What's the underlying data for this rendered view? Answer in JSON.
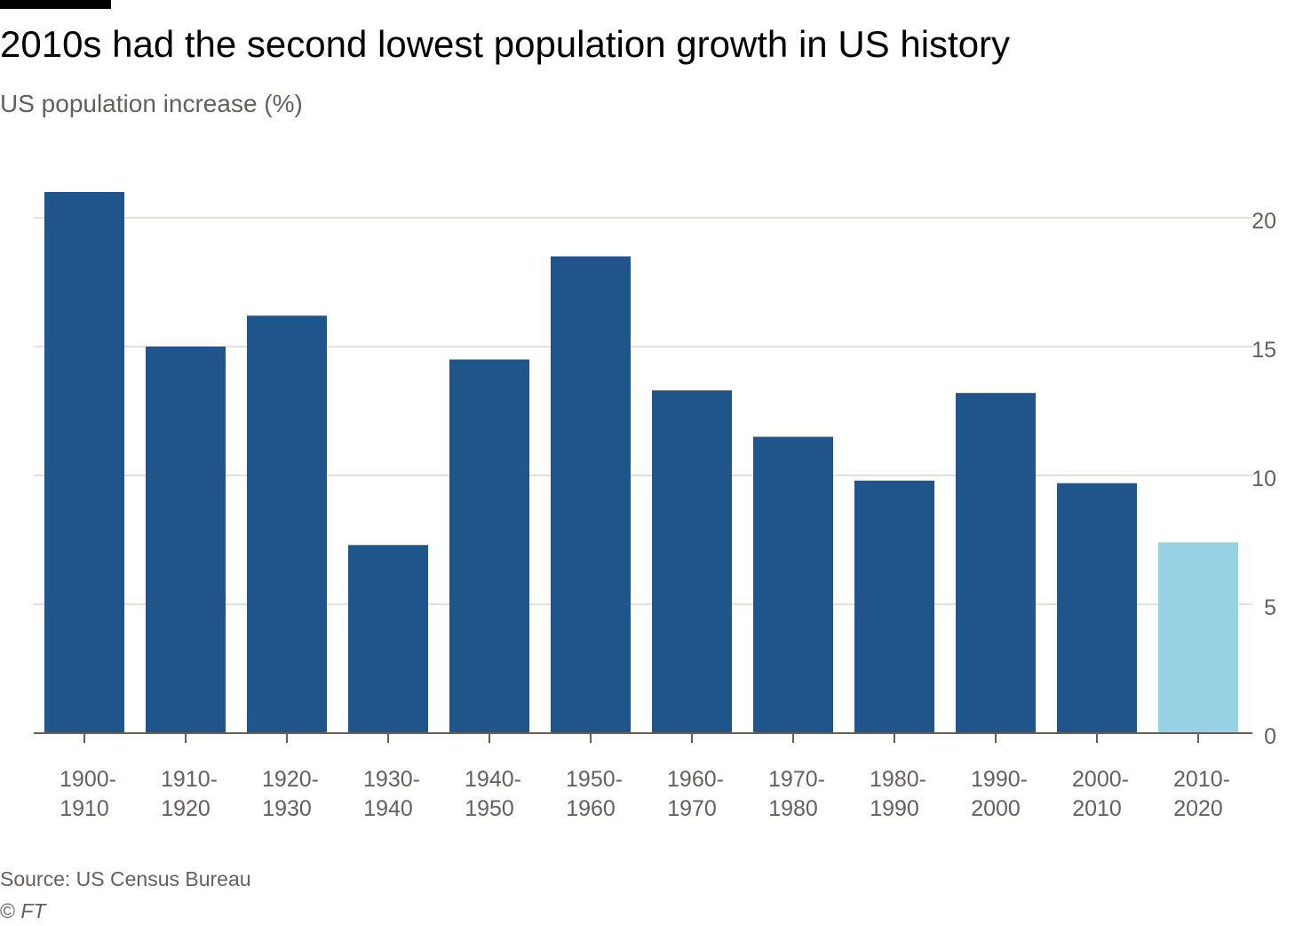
{
  "chart_data": {
    "type": "bar",
    "title": "2010s had the second lowest population growth in US history",
    "subtitle": "US population increase (%)",
    "categories": [
      [
        "1900-",
        "1910"
      ],
      [
        "1910-",
        "1920"
      ],
      [
        "1920-",
        "1930"
      ],
      [
        "1930-",
        "1940"
      ],
      [
        "1940-",
        "1950"
      ],
      [
        "1950-",
        "1960"
      ],
      [
        "1960-",
        "1970"
      ],
      [
        "1970-",
        "1980"
      ],
      [
        "1980-",
        "1990"
      ],
      [
        "1990-",
        "2000"
      ],
      [
        "2000-",
        "2010"
      ],
      [
        "2010-",
        "2020"
      ]
    ],
    "values": [
      21.0,
      15.0,
      16.2,
      7.3,
      14.5,
      18.5,
      13.3,
      11.5,
      9.8,
      13.2,
      9.7,
      7.4
    ],
    "highlight_index": 11,
    "ylim": [
      0,
      20
    ],
    "yticks": [
      0,
      5,
      10,
      15,
      20
    ],
    "y_axis_position": "right",
    "grid": true,
    "colors": {
      "bar": "#1f558a",
      "highlight": "#96d2e4",
      "grid": "#e6e0da",
      "axis": "#66605c"
    }
  },
  "source": "Source: US Census Bureau",
  "credit_symbol": "©",
  "credit_name": "FT"
}
